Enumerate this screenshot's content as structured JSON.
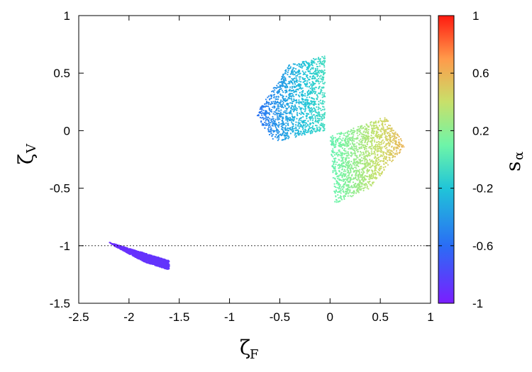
{
  "chart_data": {
    "type": "scatter",
    "xlabel": "ζ",
    "xlabel_sub": "F",
    "ylabel": "ζ",
    "ylabel_sub": "V",
    "xlim": [
      -2.5,
      1
    ],
    "ylim": [
      -1.5,
      1
    ],
    "xticks": [
      "-2.5",
      "-2",
      "-1.5",
      "-1",
      "-0.5",
      "0",
      "0.5",
      "1"
    ],
    "xtick_values": [
      -2.5,
      -2,
      -1.5,
      -1,
      -0.5,
      0,
      0.5,
      1
    ],
    "yticks": [
      "-1.5",
      "-1",
      "-0.5",
      "0",
      "0.5",
      "1"
    ],
    "ytick_values": [
      -1.5,
      -1,
      -0.5,
      0,
      0.5,
      1
    ],
    "reference_line": {
      "y": -1,
      "style": "dotted"
    },
    "colorbar": {
      "label": "s",
      "label_sub": "α",
      "range": [
        -1,
        1
      ],
      "ticks": [
        "1",
        "0.6",
        "0.2",
        "-0.2",
        "-0.6",
        "-1"
      ],
      "tick_values": [
        1,
        0.6,
        0.2,
        -0.2,
        -0.6,
        -1
      ],
      "palette": "rainbow"
    },
    "clusters": [
      {
        "description_color_value": -0.9,
        "points_outline": [
          [
            -2.2,
            -0.97
          ],
          [
            -1.6,
            -1.13
          ],
          [
            -1.6,
            -1.21
          ],
          [
            -1.85,
            -1.14
          ],
          [
            -2.15,
            -1.0
          ]
        ],
        "s_range": [
          -0.92,
          -0.88
        ]
      },
      {
        "description_color_value": -0.3,
        "points_outline": [
          [
            -0.75,
            0.13
          ],
          [
            -0.4,
            0.58
          ],
          [
            -0.05,
            0.65
          ],
          [
            -0.05,
            0.0
          ],
          [
            -0.55,
            -0.1
          ]
        ],
        "s_range": [
          -0.6,
          -0.05
        ]
      },
      {
        "description_color_value": 0.3,
        "points_outline": [
          [
            0.05,
            -0.64
          ],
          [
            0.4,
            -0.5
          ],
          [
            0.75,
            -0.13
          ],
          [
            0.55,
            0.12
          ],
          [
            0.0,
            -0.05
          ]
        ],
        "s_range": [
          0.05,
          0.6
        ]
      }
    ]
  }
}
